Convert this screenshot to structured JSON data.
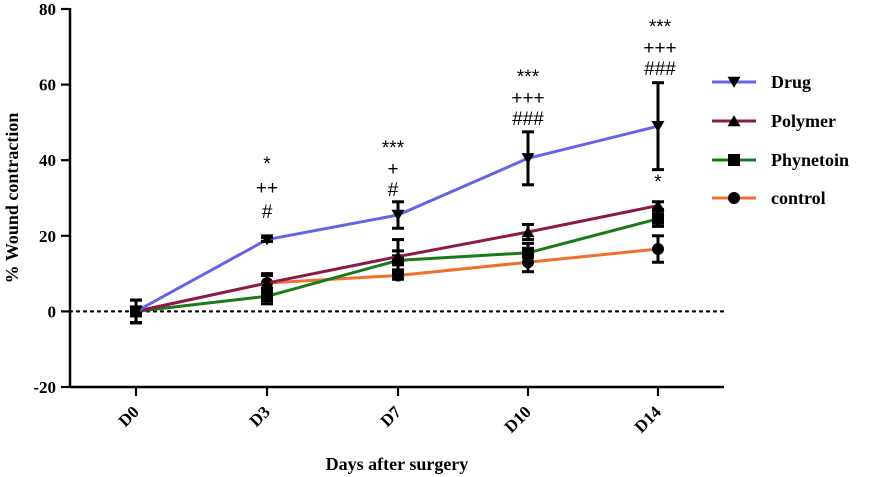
{
  "chart_data": {
    "type": "line",
    "title": "",
    "xlabel": "Days after surgery",
    "ylabel": "% Wound contraction",
    "categories": [
      "D0",
      "D3",
      "D7",
      "D10",
      "D14"
    ],
    "ylim": [
      -20,
      80
    ],
    "yticks": [
      -20,
      0,
      20,
      40,
      60,
      80
    ],
    "reference_line": {
      "y": 0,
      "style": "dotted"
    },
    "legend_position": "right",
    "series": [
      {
        "name": "Drug",
        "color": "#6464e6",
        "marker": "triangle-down",
        "values": [
          0,
          19,
          25.5,
          40.5,
          49
        ],
        "err_plus": [
          3,
          0.5,
          3.5,
          7,
          11.5
        ],
        "err_minus": [
          3,
          0.5,
          3.5,
          7,
          11.5
        ]
      },
      {
        "name": "Polymer",
        "color": "#8b1a4a",
        "marker": "triangle-up",
        "values": [
          0,
          7.5,
          14.5,
          21,
          28
        ],
        "err_plus": [
          3,
          2.5,
          4.5,
          2,
          1
        ],
        "err_minus": [
          3,
          2.5,
          4.5,
          2,
          1
        ]
      },
      {
        "name": "Phynetoin",
        "color": "#1a7a1a",
        "marker": "square",
        "values": [
          0,
          4,
          13.5,
          15.5,
          24.5
        ],
        "err_plus": [
          3,
          2,
          2.5,
          2.5,
          2
        ],
        "err_minus": [
          3,
          2,
          2.5,
          2.5,
          2
        ]
      },
      {
        "name": "control",
        "color": "#f07030",
        "marker": "circle",
        "values": [
          0,
          7.5,
          9.5,
          13,
          16.5
        ],
        "err_plus": [
          3,
          2,
          1,
          2.5,
          3.5
        ],
        "err_minus": [
          3,
          2,
          1,
          2.5,
          3.5
        ]
      }
    ],
    "annotations": [
      {
        "category": "D3",
        "lines": [
          "*",
          "++",
          "#"
        ]
      },
      {
        "category": "D7",
        "lines": [
          "***",
          "+",
          "#"
        ]
      },
      {
        "category": "D10",
        "lines": [
          "***",
          "+++",
          "###"
        ]
      },
      {
        "category": "D14",
        "lines": [
          "***",
          "+++",
          "###"
        ]
      },
      {
        "category": "D14",
        "lines": [
          "*"
        ]
      }
    ]
  }
}
